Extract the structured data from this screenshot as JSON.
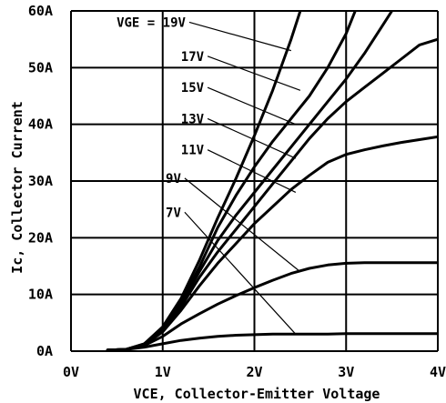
{
  "chart_data": {
    "type": "line",
    "title": "",
    "xlabel": "VCE, Collector-Emitter Voltage",
    "ylabel": "Ic, Collector Current",
    "xlim": [
      0,
      4
    ],
    "ylim": [
      0,
      60
    ],
    "x_ticks": [
      0,
      1,
      2,
      3,
      4
    ],
    "x_tick_labels": [
      "0V",
      "1V",
      "2V",
      "3V",
      "4V"
    ],
    "y_ticks": [
      0,
      10,
      20,
      30,
      40,
      50,
      60
    ],
    "y_tick_labels": [
      "0A",
      "10A",
      "20A",
      "30A",
      "40A",
      "50A",
      "60A"
    ],
    "grid": true,
    "line_color": "#000000",
    "series": [
      {
        "name": "19V",
        "label": "VGE = 19V",
        "label_at": [
          1.25,
          58
        ],
        "pointer_to": [
          2.4,
          53
        ],
        "x": [
          0.4,
          0.6,
          0.8,
          1.0,
          1.2,
          1.4,
          1.6,
          1.8,
          2.0,
          2.2,
          2.4,
          2.5
        ],
        "y": [
          0.2,
          0.3,
          1.3,
          4.3,
          9.3,
          16,
          23.5,
          30.5,
          38,
          46,
          55,
          60
        ]
      },
      {
        "name": "17V",
        "label": "17V",
        "label_at": [
          1.45,
          52
        ],
        "pointer_to": [
          2.5,
          46
        ],
        "x": [
          0.4,
          0.6,
          0.8,
          1.0,
          1.2,
          1.4,
          1.6,
          1.8,
          2.0,
          2.2,
          2.4,
          2.6,
          2.8,
          3.0,
          3.1
        ],
        "y": [
          0.2,
          0.3,
          1.3,
          4.0,
          8.7,
          14.8,
          21.8,
          27.5,
          32.5,
          37,
          41,
          45,
          50,
          56,
          60
        ]
      },
      {
        "name": "15V",
        "label": "15V",
        "label_at": [
          1.45,
          46.5
        ],
        "pointer_to": [
          2.45,
          40
        ],
        "x": [
          0.4,
          0.6,
          0.8,
          1.0,
          1.2,
          1.4,
          1.6,
          1.8,
          2.0,
          2.2,
          2.4,
          2.6,
          2.8,
          3.0,
          3.2,
          3.4,
          3.5
        ],
        "y": [
          0.2,
          0.3,
          1.2,
          3.8,
          8.3,
          14,
          19.5,
          24,
          28,
          32,
          36,
          40,
          44,
          48,
          52.5,
          57.5,
          60
        ]
      },
      {
        "name": "13V",
        "label": "13V",
        "label_at": [
          1.45,
          41
        ],
        "pointer_to": [
          2.45,
          34
        ],
        "x": [
          0.4,
          0.6,
          0.8,
          1.0,
          1.2,
          1.4,
          1.6,
          1.8,
          2.0,
          2.2,
          2.4,
          2.6,
          2.8,
          3.0,
          3.2,
          3.4,
          3.6,
          3.8,
          4.0
        ],
        "y": [
          0.2,
          0.3,
          1.2,
          3.6,
          7.8,
          13,
          17.5,
          21.5,
          25.5,
          29.5,
          33.5,
          37.5,
          41,
          44,
          46.5,
          49,
          51.5,
          54,
          55
        ]
      },
      {
        "name": "11V",
        "label": "11V",
        "label_at": [
          1.45,
          35.5
        ],
        "pointer_to": [
          2.45,
          28
        ],
        "x": [
          0.4,
          0.6,
          0.8,
          1.0,
          1.2,
          1.4,
          1.6,
          1.8,
          2.0,
          2.2,
          2.4,
          2.6,
          2.8,
          3.0,
          3.2,
          3.4,
          3.6,
          3.8,
          4.0
        ],
        "y": [
          0.2,
          0.3,
          1.1,
          3.4,
          7.2,
          11.5,
          15.5,
          19,
          22.5,
          25.5,
          28.5,
          31,
          33.3,
          34.7,
          35.5,
          36.2,
          36.8,
          37.3,
          37.8
        ]
      },
      {
        "name": "9V",
        "label": "9V",
        "label_at": [
          1.2,
          30.5
        ],
        "pointer_to": [
          2.5,
          14
        ],
        "x": [
          0.4,
          0.6,
          0.8,
          1.0,
          1.2,
          1.4,
          1.6,
          1.8,
          2.0,
          2.2,
          2.4,
          2.6,
          2.8,
          3.0,
          3.2,
          3.4,
          3.6,
          3.8,
          4.0
        ],
        "y": [
          0.2,
          0.3,
          1.0,
          2.6,
          4.8,
          6.6,
          8.3,
          9.8,
          11.2,
          12.5,
          13.7,
          14.6,
          15.2,
          15.5,
          15.6,
          15.6,
          15.6,
          15.6,
          15.6
        ]
      },
      {
        "name": "7V",
        "label": "7V",
        "label_at": [
          1.2,
          24.5
        ],
        "pointer_to": [
          2.45,
          3.0
        ],
        "x": [
          0.4,
          0.6,
          0.8,
          1.0,
          1.2,
          1.4,
          1.6,
          1.8,
          2.0,
          2.2,
          2.4,
          2.6,
          2.8,
          3.0,
          3.2,
          3.4,
          3.6,
          3.8,
          4.0
        ],
        "y": [
          0.2,
          0.3,
          0.7,
          1.3,
          1.9,
          2.3,
          2.6,
          2.8,
          2.9,
          3.0,
          3.0,
          3.0,
          3.0,
          3.1,
          3.1,
          3.1,
          3.1,
          3.1,
          3.1
        ]
      }
    ]
  }
}
